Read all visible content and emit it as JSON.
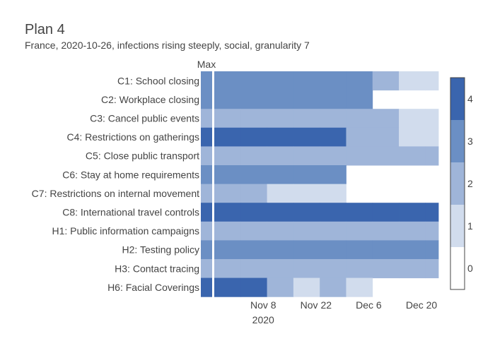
{
  "chart_data": {
    "type": "heatmap",
    "title": "Plan 4",
    "subtitle": "France, 2020-10-26, infections rising steeply, social, granularity 7",
    "max_label": "Max",
    "rows": [
      "C1: School closing",
      "C2: Workplace closing",
      "C3: Cancel public events",
      "C4: Restrictions on gatherings",
      "C5: Close public transport",
      "C6: Stay at home requirements",
      "C7: Restrictions on internal movement",
      "C8: International travel controls",
      "H1: Public information campaigns",
      "H2: Testing policy",
      "H3: Contact tracing",
      "H6: Facial Coverings"
    ],
    "max_values": [
      3,
      3,
      2,
      4,
      2,
      3,
      2,
      4,
      2,
      3,
      2,
      4
    ],
    "x_start": "2020-10-26",
    "week_columns": [
      "2020-10-26",
      "2020-11-02",
      "2020-11-09",
      "2020-11-16",
      "2020-11-23",
      "2020-11-30",
      "2020-12-07",
      "2020-12-14",
      "2020-12-21"
    ],
    "values": [
      [
        3,
        3,
        3,
        3,
        3,
        3,
        2,
        1,
        1
      ],
      [
        3,
        3,
        3,
        3,
        3,
        3,
        null,
        null,
        null
      ],
      [
        2,
        2,
        2,
        2,
        2,
        2,
        2,
        1,
        1
      ],
      [
        4,
        4,
        4,
        4,
        4,
        2,
        2,
        1,
        1
      ],
      [
        2,
        2,
        2,
        2,
        2,
        2,
        2,
        2,
        2
      ],
      [
        3,
        3,
        3,
        3,
        3,
        null,
        null,
        null,
        null
      ],
      [
        2,
        2,
        1,
        1,
        1,
        null,
        null,
        null,
        null
      ],
      [
        4,
        4,
        4,
        4,
        4,
        4,
        4,
        4,
        4
      ],
      [
        2,
        2,
        2,
        2,
        2,
        2,
        2,
        2,
        2
      ],
      [
        3,
        3,
        3,
        3,
        3,
        3,
        3,
        3,
        3
      ],
      [
        2,
        2,
        2,
        2,
        2,
        2,
        2,
        2,
        2
      ],
      [
        4,
        4,
        2,
        1,
        2,
        1,
        null,
        null,
        null
      ]
    ],
    "x_ticks": [
      {
        "date": "2020-11-08",
        "label": "Nov 8",
        "sublabel": "2020"
      },
      {
        "date": "2020-11-22",
        "label": "Nov 22",
        "sublabel": ""
      },
      {
        "date": "2020-12-06",
        "label": "Dec 6",
        "sublabel": ""
      },
      {
        "date": "2020-12-20",
        "label": "Dec 20",
        "sublabel": ""
      }
    ],
    "colorscale": {
      "0": "#ffffff",
      "1": "#d1dced",
      "2": "#9fb5d9",
      "3": "#6b8fc4",
      "4": "#3a65ae"
    },
    "colorbar_ticks": [
      0,
      1,
      2,
      3,
      4
    ],
    "zrange": [
      -0.5,
      4.5
    ]
  }
}
